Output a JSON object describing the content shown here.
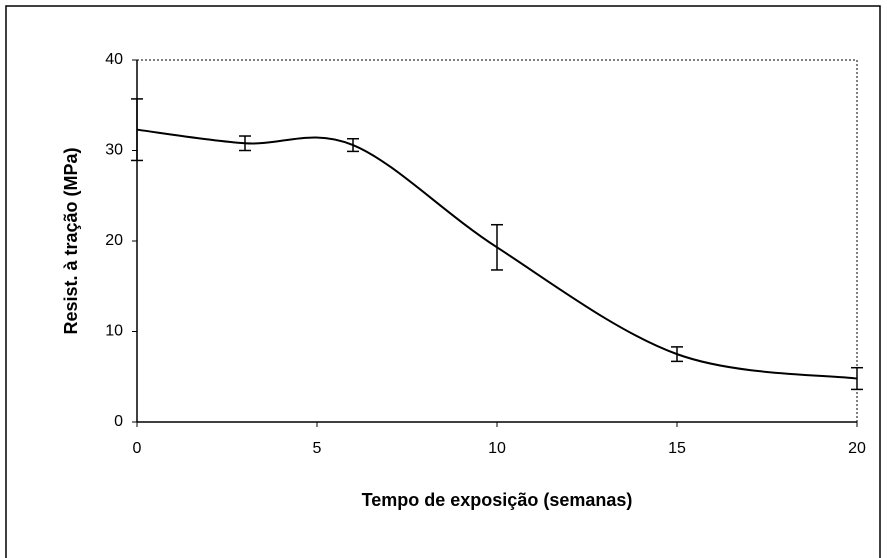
{
  "chart_data": {
    "type": "line",
    "x_label": "Tempo de exposição (semanas)",
    "y_label": "Resist. à tração (MPa)",
    "x": [
      0,
      3,
      6,
      10,
      15,
      20
    ],
    "values": [
      32.3,
      30.8,
      30.6,
      19.3,
      7.5,
      4.8
    ],
    "errors": [
      3.4,
      0.8,
      0.7,
      2.5,
      0.8,
      1.2
    ],
    "color": "#000000",
    "xlim": [
      0,
      20
    ],
    "xticks": [
      0,
      5,
      10,
      15,
      20
    ],
    "ylim": [
      0,
      40
    ],
    "yticks": [
      0,
      10,
      20,
      30,
      40
    ],
    "grid": false
  }
}
